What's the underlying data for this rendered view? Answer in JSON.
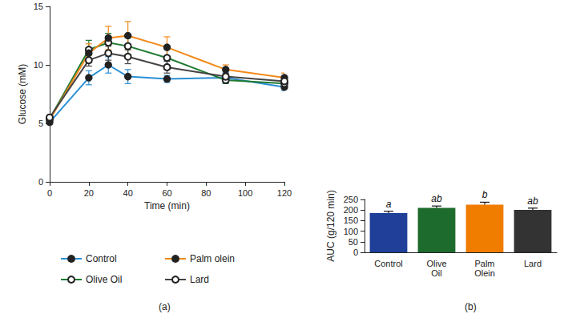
{
  "chart_data": [
    {
      "type": "line",
      "x": [
        0,
        20,
        30,
        40,
        60,
        90,
        120
      ],
      "xlim": [
        0,
        120
      ],
      "xticks": [
        0,
        20,
        40,
        60,
        80,
        100,
        120
      ],
      "ylim": [
        0,
        15
      ],
      "yticks": [
        0,
        5,
        10,
        15
      ],
      "x_label": "Time (min)",
      "y_label": "Glucose (mM)",
      "caption": "(a)",
      "legend": "bottom",
      "grid": false,
      "series": [
        {
          "name": "Control",
          "color": "#2a8fd6",
          "marker": "circle",
          "values": [
            5.1,
            8.9,
            10.0,
            9.0,
            8.8,
            8.9,
            8.1
          ],
          "errors": [
            0.2,
            0.6,
            0.7,
            0.6,
            0.3,
            0.4,
            0.3
          ]
        },
        {
          "name": "Olive Oil",
          "color": "#1e7a30",
          "marker": "emptyCircle",
          "values": [
            5.4,
            11.3,
            11.9,
            11.6,
            10.6,
            8.7,
            8.4
          ],
          "errors": [
            0.2,
            0.8,
            0.8,
            0.7,
            0.7,
            0.3,
            0.3
          ]
        },
        {
          "name": "Palm olein",
          "color": "#f28a1c",
          "marker": "circle",
          "values": [
            5.3,
            11.0,
            12.3,
            12.5,
            11.5,
            9.6,
            8.9
          ],
          "errors": [
            0.2,
            0.8,
            1.0,
            1.2,
            0.9,
            0.4,
            0.4
          ]
        },
        {
          "name": "Lard",
          "color": "#444444",
          "marker": "emptyCircle",
          "values": [
            5.5,
            10.4,
            11.0,
            10.7,
            9.8,
            9.0,
            8.6
          ],
          "errors": [
            0.2,
            0.5,
            0.6,
            0.6,
            0.5,
            0.3,
            0.4
          ]
        }
      ]
    },
    {
      "type": "bar",
      "categories": [
        "Control",
        "Olive Oil",
        "Palm Olein",
        "Lard"
      ],
      "values": [
        186,
        210,
        225,
        201
      ],
      "errors": [
        8,
        9,
        12,
        8
      ],
      "colors": [
        "#1f3f99",
        "#1e6b2e",
        "#f07c00",
        "#333333"
      ],
      "annotations": [
        "a",
        "ab",
        "b",
        "ab"
      ],
      "ylim": [
        0,
        250
      ],
      "yticks": [
        0,
        50,
        100,
        150,
        200,
        250
      ],
      "y_label": "AUC (g/120 min)",
      "caption": "(b)",
      "grid": false
    }
  ]
}
